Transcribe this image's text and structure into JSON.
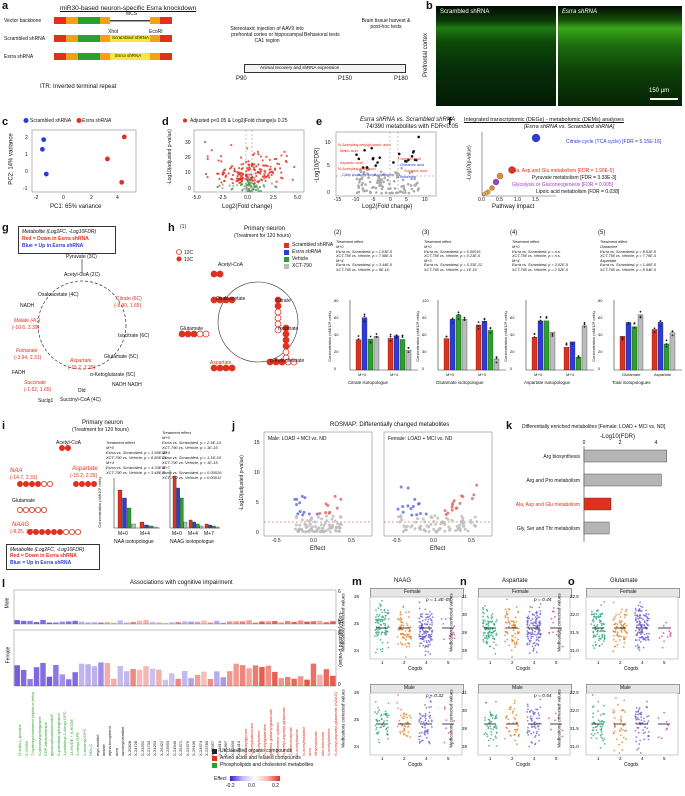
{
  "colors": {
    "red": "#e0301e",
    "blue": "#2d3bd8",
    "green": "#2ca02c",
    "gray": "#9a9a9a",
    "navy": "#1f2a66"
  },
  "panels": {
    "a": {
      "letter": "a",
      "title": "miR30-based neuron-specific Esrra knockdown",
      "rows": [
        {
          "label": "Vector backbone"
        },
        {
          "label": "Scrambled shRNA",
          "insert": "Scrambled shRNA"
        },
        {
          "label": "Esrra shRNA",
          "insert": "Esrra shRNA"
        }
      ],
      "elements": {
        "itr": "ITR",
        "syn": "Syn",
        "egfp": "EGFP",
        "mir": "miR",
        "mcs": "MCS",
        "xhoi": "XhoI",
        "ecori": "EcoRI"
      },
      "itr_note": "ITR: Inverted terminal repeat",
      "step1": "Stereotaxic injection of AAV9 into prefrontal cortex or hippocampal CA1 region",
      "step2": "Behavioral tests",
      "step3": "Brain tissue harvest & post-hoc tests",
      "timeline_bar": "Animal recovery and shRNA expression",
      "timepoints": [
        "P90",
        "P150",
        "P180"
      ]
    },
    "b": {
      "letter": "b",
      "left": "Scrambled shRNA",
      "right": "Esrra shRNA",
      "ylabel": "Prefrontal cortex",
      "scalebar": "150 µm"
    },
    "c": {
      "letter": "c",
      "legend": [
        "Scrambled shRNA",
        "Esrra shRNA"
      ],
      "xlabel": "PC1: 65% variance",
      "ylabel": "PC2: 14% variance",
      "xticks": [
        "-2",
        "0",
        "2",
        "4"
      ],
      "yticks": [
        "-1",
        "0",
        "1",
        "2"
      ]
    },
    "d": {
      "letter": "d",
      "legend": "Adjusted p<0.05 & Log2|Fold change|≥ 0.25",
      "xlabel": "Log2(Fold change)",
      "ylabel": "-Log10(adjusted p-value)",
      "xticks": [
        "-5.0",
        "-2.5",
        "0.0",
        "2.5",
        "5.0"
      ],
      "yticks": [
        "0",
        "10",
        "20",
        "30"
      ]
    },
    "e": {
      "letter": "e",
      "title": "Esrra shRNA vs. Scrambled shRNA",
      "subtitle": "74/390 metabolites with FDR<0.05",
      "xlabel": "Log2(Fold change)",
      "ylabel": "-Log10(FDR)",
      "xticks": [
        "-15",
        "-10",
        "-5",
        "0",
        "5",
        "10"
      ],
      "yticks": [
        "0",
        "5",
        "10"
      ],
      "labels": [
        {
          "text": "N-Acetylaspartylglutamic acid",
          "c": "red"
        },
        {
          "text": "Malic acid",
          "c": "red"
        },
        {
          "text": "Aspartic acid",
          "c": "red"
        },
        {
          "text": "N-Acetylaspartic acid",
          "c": "red"
        },
        {
          "text": "Fumaric acid",
          "c": "red"
        },
        {
          "text": "Citric Acid",
          "c": "blue"
        },
        {
          "text": "Isoleucine",
          "c": "blue"
        },
        {
          "text": "Glutamic acid",
          "c": "blue"
        },
        {
          "text": "Asparagine",
          "c": "blue"
        },
        {
          "text": "Succinic acid",
          "c": "red"
        },
        {
          "text": "Glutamine",
          "c": "blue"
        }
      ]
    },
    "f": {
      "letter": "f",
      "title": "Integrated transcriptomic (DEGs) - metabolomic (DEMs) analyses",
      "subtitle": "[Esrra shRNA vs. Scrambled shRNA]",
      "xlabel": "Pathway impact",
      "ylabel": "-Log10(p-value)",
      "xticks": [
        "0.0",
        "0.5",
        "1.0",
        "1.5"
      ],
      "pathways": [
        {
          "text": "Citrate cycle (TCA cycle) [FDR = 5.15E-16]",
          "c": "blue"
        },
        {
          "text": "Ala, Asp and Glu metabolism [FDR = 1.90E-5]",
          "c": "red"
        },
        {
          "text": "Pyruvate metabolism [FDR = 3.33E-3]",
          "c": "dark"
        },
        {
          "text": "Glycolysis or Gluconeogenesis [FDR = 0.005]",
          "c": "pur"
        },
        {
          "text": "Lipoic acid metabolism [FDR = 0.038]",
          "c": "dark"
        }
      ]
    },
    "g": {
      "letter": "g",
      "legend_title": "Metabolite (Log2FC, -Log10FDR)",
      "legend_red": "Red = Down in Esrra shRNA",
      "legend_blue": "Blue = Up in Esrra shRNA",
      "nodes": {
        "pyruvate": "Pyruvate (3C)",
        "acetyl": "Acetyl-CoA (2C)",
        "oaa": "Oxaloacetate (4C)",
        "citrate": "Citrate (6C)",
        "citrate_v": "(-8.90, 1.65)",
        "iso": "Isocitrate (6C)",
        "akg": "α-Ketoglutarate (5C)",
        "succ": "Succinyl-CoA (4C)",
        "succinate": "Succinate",
        "succinate_v": "(-1.62, 1.65)",
        "fumarate": "Fumarate",
        "fumarate_v": "(-3.94, 2.31)",
        "malate": "Malate (4C)",
        "malate_v": "(-10.6, 3.39)",
        "aspartate": "Aspartate",
        "aspartate_v": "(-15.2, 2.29)",
        "glutamate": "Glutamate (5C)",
        "nadh": "NADH",
        "fadh": "FADH",
        "dld": "Dld",
        "sucla": "Suclg1",
        "nad": "NADH NADH"
      }
    },
    "h": {
      "letter": "h",
      "sub": "(1)",
      "title": "Primary neuron",
      "subtitle": "(Treatment for 120 hours)",
      "legend": [
        "Scrambled shRNA",
        "Esrra shRNA",
        "Vehicle",
        "XCT-790"
      ],
      "iso_legend": [
        "12C",
        "13C"
      ],
      "nodes": [
        "Acetyl-CoA",
        "Oxaloacetate",
        "Citrate",
        "Isocitrate",
        "α-Ketoglutarate",
        "Glutamate",
        "Aspartate"
      ],
      "subpanels": [
        {
          "num": "(2)",
          "effect": "Treatment effect",
          "lines": [
            "M+0",
            "Esrra vs. Scrambled, p = 1.03E-5",
            "XCT-790 vs. Vehicle, p = 7.58E-5",
            "M+4",
            "Esrra vs. Scrambled, p = 3.44E-5",
            "XCT-790 vs. Vehicle, p = 9E-16"
          ],
          "xcats": [
            "M+0",
            "M+4"
          ],
          "xlabel": "Citrate isotopologue",
          "yticks": [
            "0",
            "20",
            "40",
            "60",
            "80"
          ]
        },
        {
          "num": "(3)",
          "effect": "Treatment effect",
          "lines": [
            "M+0",
            "Esrra vs. Scrambled, p = 0.00016",
            "XCT-790 vs. Vehicle, p = 0.21E-5",
            "M+3",
            "Esrra vs. Scrambled, p = 5.33E-12",
            "XCT-790 vs. Vehicle, p = 1E-16"
          ],
          "xcats": [
            "M+0",
            "M+3"
          ],
          "xlabel": "Glutamate isotopologue",
          "yticks": [
            "0",
            "30",
            "60",
            "90",
            "120"
          ]
        },
        {
          "num": "(4)",
          "effect": "Treatment effect",
          "lines": [
            "M+0",
            "Esrra vs. Scrambled, p = n.s.",
            "XCT-790 vs. Vehicle, p = n.s.",
            "M+4",
            "Esrra vs. Scrambled, p = 3.02E-5",
            "XCT-790 vs. Vehicle, p = 2.52E-5"
          ],
          "xcats": [
            "M+0",
            "M+4"
          ],
          "xlabel": "Aspartate isotopologue",
          "yticks": [
            "0",
            "20",
            "40",
            "60"
          ]
        },
        {
          "num": "(5)",
          "effect": "Treatment effect",
          "lines": [
            "Glutamine",
            "Esrra vs. Scrambled, p = 8.51E-5",
            "XCT-790 vs. Vehicle, p = 7.76E-5",
            "Aspartate",
            "Esrra vs. Scrambled, p = 1.46E-5",
            "XCT-790 vs. Vehicle, p = 8.64E-5"
          ],
          "xcats": [
            "Glutamate",
            "Aspartate"
          ],
          "xlabel": "Total isotopologues",
          "yticks": [
            "0",
            "20",
            "40",
            "60",
            "80"
          ]
        }
      ],
      "ylabel": "Concentration (nM/10⁶ cells)"
    },
    "i": {
      "letter": "i",
      "title": "Primary neuron",
      "subtitle": "(Treatment for 120 hours)",
      "naa": "NAA",
      "naa_v": "(-14.7, 2.31)",
      "asp": "Aspartate",
      "asp_v": "(-15.2, 2.29)",
      "glu": "Glutamate",
      "naag": "NAAG",
      "naag_v": "(-8.25, 3.23)",
      "acetyl": "Acetyl-CoA",
      "legend_title": "Metabolite (Log2FC, -Log10FDR)",
      "legend_red": "Red = Down in Esrra shRNA",
      "legend_blue": "Blue = Up in Esrra shRNA",
      "stats1": [
        "Treatment effect",
        "M+0",
        "Esrra vs. Scrambled, p = 1.60E-12",
        "XCT-790 vs. Vehicle, p = 8.80E-11",
        "M+4",
        "Esrra vs. Scrambled, p = 4.33E-8",
        "XCT-790 vs. Vehicle, p = 3.48E-9"
      ],
      "stats2": [
        "Treatment effect",
        "M+0",
        "Esrra vs. Scrambled, p = 2.5E-14",
        "XCT-790 vs. Vehicle, p = 1E-15",
        "M+4",
        "Esrra vs. Scrambled, p = 1.1E-10",
        "XCT-790 vs. Vehicle, p = 1E-15",
        "M+7",
        "Esrra vs. Scrambled, p = 0.00026",
        "XCT-790 vs. Vehicle, p = 0.00011"
      ],
      "xlabel1": "NAA isotopologue",
      "xlabel2": "NAAG isotopologue",
      "ylabel": "Concentration (nM/10⁶ cells)",
      "cats1": [
        "M+0",
        "M+4"
      ],
      "cats2": [
        "M+0",
        "M+4",
        "M+7"
      ]
    },
    "j": {
      "letter": "j",
      "title": "ROSMAP: Differentially changed metabolites",
      "left": "Male: LOAD + MCI vs. ND",
      "right": "Female: LOAD + MCI vs. ND",
      "xlabel": "Effect",
      "ylabel": "-Log10(adjusted p-value)",
      "xticks_l": [
        "-0.5",
        "0.0",
        "0.5"
      ],
      "xticks_r": [
        "-0.5",
        "0.0",
        "0.5"
      ],
      "yticks": [
        "0",
        "5",
        "10",
        "15"
      ]
    },
    "k": {
      "letter": "k",
      "title": "Differentially enriched metabolites [Female: LOAD + MCI vs. ND]",
      "axis_label": "-Log10(FDR)",
      "bars": [
        {
          "name": "Arg biosynthesis",
          "value": 4.6
        },
        {
          "name": "Arg and Pro metabolism",
          "value": 4.3
        },
        {
          "name": "Ala, Asp and Glu metabolism",
          "value": 1.5
        },
        {
          "name": "Gly, Ser and Thr metabolism",
          "value": 1.4
        }
      ],
      "xticks": [
        "0",
        "2",
        "4"
      ]
    },
    "l": {
      "letter": "l",
      "title": "Associations with cognitive impairment",
      "male": "Male",
      "female": "Female",
      "ylabel": "-Log10(adjusted p-value)",
      "yticks_top": [
        "0",
        "2",
        "4",
        "6"
      ],
      "yticks_bot": [
        "0",
        "2",
        "4",
        "6"
      ],
      "legend": [
        "Unclassified organic compounds",
        "Amino acids and related compounds",
        "Phospholipids and cholesterol metabolites"
      ],
      "effect_title": "Effect",
      "effect_ticks": [
        "-0.2",
        "0.0",
        "0.2"
      ],
      "green_labels": [
        "O-sulfo-L-tyrosine",
        "X-25656",
        "7-hydroxycholesterol (alpha or beta)",
        "N-stearoylsphingosine",
        "CDP-ethanolamine",
        "glycerophosphoinositol*",
        "N-palmitoyl-sphingosine",
        "1-palmitoyl-2-oleoyl-GPC",
        "13-HODE + 9-HODE",
        "1-oleoyl-GPE",
        "1-stearoyl-GPC",
        "HDL-C"
      ],
      "black_labels": [
        "myo-inositol",
        "lactate",
        "alpha-tocopherol",
        "urea",
        "succinylcarnitine",
        "X-25828",
        "X-24728",
        "X-23291",
        "X-21733",
        "X-24293",
        "X-25422",
        "X-23593",
        "X-24949",
        "X-25371",
        "X-22379",
        "X-26109",
        "X-24574",
        "X-23780",
        "X-25957",
        "X-25810",
        "X-21897",
        "X-12830",
        "X-21410"
      ],
      "red_labels": [
        "dimethylglycine",
        "N-acetylputrescine",
        "N-acetylserine",
        "N-acetylglutamine",
        "gamma-glutamylglutamate",
        "methionine sulfone",
        "N-acetyl-aspartyl-glutamate",
        "2-aminobutyrate",
        "N-acetyltaurine",
        "N-acetylhistidine",
        "urea",
        "ethylmalonate",
        "allo-threonine",
        "N-acetylalanine",
        "N-acetyl-aspartyl-glutamate (NAAG)"
      ]
    },
    "m": {
      "letter": "m",
      "title": "NAAG",
      "female": "Female",
      "male": "Male",
      "p_female": "p = 1.4E-09",
      "p_male": "p = 0.32",
      "xlabel": "Cogdx",
      "ylabel": "Medications corrected values",
      "xticks": [
        "1",
        "2",
        "4",
        "5"
      ],
      "yticks_f": [
        "24",
        "25",
        "26"
      ],
      "yticks_m": [
        "24",
        "25",
        "26"
      ]
    },
    "n": {
      "letter": "n",
      "title": "Aspartate",
      "female": "Female",
      "male": "Male",
      "p_female": "p = 0.44",
      "p_male": "p = 0.54",
      "xlabel": "Cogdx",
      "ylabel": "Medications corrected values",
      "xticks": [
        "1",
        "2",
        "4",
        "5"
      ],
      "yticks_f": [
        "28",
        "29",
        "30",
        "31"
      ],
      "yticks_m": [
        "28",
        "29",
        "30",
        "31"
      ]
    },
    "o": {
      "letter": "o",
      "title": "Glutamate",
      "female": "Female",
      "male": "Male",
      "xlabel": "Cogdx",
      "ylabel": "Medications corrected values",
      "xticks": [
        "1",
        "2",
        "4",
        "5"
      ],
      "yticks_f": [
        "31.0",
        "31.5",
        "32.0",
        "32.5"
      ],
      "yticks_m": [
        "31.0",
        "31.5",
        "32.0",
        "32.5"
      ]
    }
  },
  "chart_data": [
    {
      "type": "scatter",
      "panel": "c",
      "xlabel": "PC1: 65% variance",
      "ylabel": "PC2: 14% variance",
      "series": [
        {
          "name": "Scrambled shRNA",
          "x": [
            -2.6,
            -2.7,
            -2.4
          ],
          "y": [
            2.3,
            1.6,
            -0.2
          ]
        },
        {
          "name": "Esrra shRNA",
          "x": [
            2.3,
            3.4,
            3.6
          ],
          "y": [
            0.9,
            -0.8,
            2.5
          ]
        }
      ]
    },
    {
      "type": "bar",
      "panel": "k",
      "categories": [
        "Arg biosynthesis",
        "Arg and Pro metabolism",
        "Ala, Asp and Glu metabolism",
        "Gly, Ser and Thr metabolism"
      ],
      "values": [
        4.6,
        4.3,
        1.5,
        1.4
      ],
      "xlabel": "-Log10(FDR)",
      "xlim": [
        0,
        5
      ]
    }
  ]
}
